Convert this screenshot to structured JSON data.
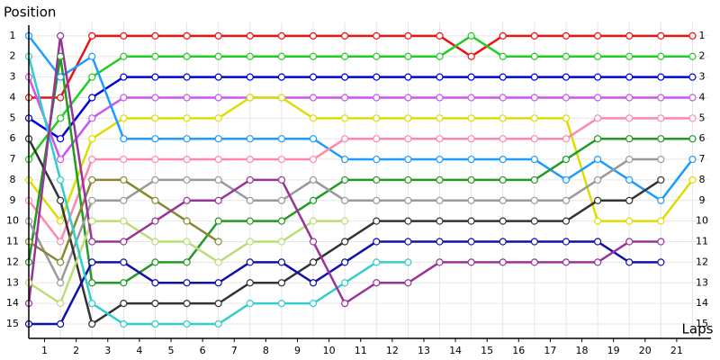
{
  "chart_data": {
    "type": "line",
    "y_label": "Position",
    "x_label": "Laps",
    "x": [
      0,
      1,
      2,
      3,
      4,
      5,
      6,
      7,
      8,
      9,
      10,
      11,
      12,
      13,
      14,
      15,
      16,
      17,
      18,
      19,
      20,
      21
    ],
    "xlim": [
      0,
      21.5
    ],
    "ylim": [
      15.7,
      0.35
    ],
    "xticks": [
      {
        "value": 0.5,
        "label": "1"
      },
      {
        "value": 1.5,
        "label": "2"
      },
      {
        "value": 2.5,
        "label": "3"
      },
      {
        "value": 3.5,
        "label": "4"
      },
      {
        "value": 4.5,
        "label": "5"
      },
      {
        "value": 5.5,
        "label": "6"
      },
      {
        "value": 6.5,
        "label": "7"
      },
      {
        "value": 7.5,
        "label": "8"
      },
      {
        "value": 8.5,
        "label": "9"
      },
      {
        "value": 9.5,
        "label": "10"
      },
      {
        "value": 10.5,
        "label": "11"
      },
      {
        "value": 11.5,
        "label": "12"
      },
      {
        "value": 12.5,
        "label": "13"
      },
      {
        "value": 13.5,
        "label": "14"
      },
      {
        "value": 14.5,
        "label": "15"
      },
      {
        "value": 15.5,
        "label": "16"
      },
      {
        "value": 16.5,
        "label": "17"
      },
      {
        "value": 17.5,
        "label": "18"
      },
      {
        "value": 18.5,
        "label": "19"
      },
      {
        "value": 19.5,
        "label": "20"
      },
      {
        "value": 20.5,
        "label": "21"
      }
    ],
    "yticks": [
      1,
      2,
      3,
      4,
      5,
      6,
      7,
      8,
      9,
      10,
      11,
      12,
      13,
      14,
      15
    ],
    "grid": true,
    "series": [
      {
        "color": "#ee1111",
        "values": [
          4,
          4,
          1,
          1,
          1,
          1,
          1,
          1,
          1,
          1,
          1,
          1,
          1,
          1,
          2,
          1,
          1,
          1,
          1,
          1,
          1,
          1
        ]
      },
      {
        "color": "#22cc22",
        "values": [
          7,
          5,
          3,
          2,
          2,
          2,
          2,
          2,
          2,
          2,
          2,
          2,
          2,
          2,
          1,
          2,
          2,
          2,
          2,
          2,
          2,
          2
        ]
      },
      {
        "color": "#0000dd",
        "values": [
          5,
          6,
          4,
          3,
          3,
          3,
          3,
          3,
          3,
          3,
          3,
          3,
          3,
          3,
          3,
          3,
          3,
          3,
          3,
          3,
          3,
          3
        ]
      },
      {
        "color": "#cc55ee",
        "values": [
          3,
          7,
          5,
          4,
          4,
          4,
          4,
          4,
          4,
          4,
          4,
          4,
          4,
          4,
          4,
          4,
          4,
          4,
          4,
          4,
          4,
          4
        ]
      },
      {
        "color": "#dddd00",
        "values": [
          8,
          10,
          6,
          5,
          5,
          5,
          5,
          4,
          4,
          5,
          5,
          5,
          5,
          5,
          5,
          5,
          5,
          5,
          10,
          10,
          10,
          8
        ]
      },
      {
        "color": "#1e9bff",
        "values": [
          1,
          3,
          2,
          6,
          6,
          6,
          6,
          6,
          6,
          6,
          7,
          7,
          7,
          7,
          7,
          7,
          7,
          8,
          7,
          8,
          9,
          7
        ]
      },
      {
        "color": "#ff88aa",
        "values": [
          9,
          11,
          7,
          7,
          7,
          7,
          7,
          7,
          7,
          7,
          6,
          6,
          6,
          6,
          6,
          6,
          6,
          6,
          5,
          5,
          5,
          5
        ]
      },
      {
        "color": "#229922",
        "values": [
          12,
          2,
          13,
          13,
          12,
          12,
          10,
          10,
          10,
          9,
          8,
          8,
          8,
          8,
          8,
          8,
          8,
          7,
          6,
          6,
          6,
          6
        ]
      },
      {
        "color": "#999999",
        "values": [
          10,
          13,
          9,
          9,
          8,
          8,
          8,
          9,
          9,
          8,
          9,
          9,
          9,
          9,
          9,
          9,
          9,
          9,
          8,
          7,
          7,
          null
        ]
      },
      {
        "color": "#333333",
        "values": [
          6,
          9,
          15,
          14,
          14,
          14,
          14,
          13,
          13,
          12,
          11,
          10,
          10,
          10,
          10,
          10,
          10,
          10,
          9,
          9,
          8,
          null
        ]
      },
      {
        "color": "#1111aa",
        "values": [
          15,
          15,
          12,
          12,
          13,
          13,
          13,
          12,
          12,
          13,
          12,
          11,
          11,
          11,
          11,
          11,
          11,
          11,
          11,
          12,
          12,
          null
        ]
      },
      {
        "color": "#888833",
        "values": [
          11,
          12,
          8,
          8,
          9,
          10,
          11,
          null,
          null,
          null,
          null,
          null,
          null,
          null,
          null,
          null,
          null,
          null,
          null,
          null,
          null,
          null
        ]
      },
      {
        "color": "#bbdd77",
        "values": [
          13,
          14,
          10,
          10,
          11,
          11,
          12,
          11,
          11,
          10,
          10,
          null,
          null,
          null,
          null,
          null,
          null,
          null,
          null,
          null,
          null,
          null
        ]
      },
      {
        "color": "#33cccc",
        "values": [
          2,
          8,
          14,
          15,
          15,
          15,
          15,
          14,
          14,
          14,
          13,
          12,
          12,
          null,
          null,
          null,
          null,
          null,
          null,
          null,
          null,
          null
        ]
      },
      {
        "color": "#993399",
        "values": [
          14,
          1,
          11,
          11,
          10,
          9,
          9,
          8,
          8,
          11,
          14,
          13,
          13,
          12,
          12,
          12,
          12,
          12,
          12,
          11,
          11,
          null
        ]
      }
    ]
  }
}
